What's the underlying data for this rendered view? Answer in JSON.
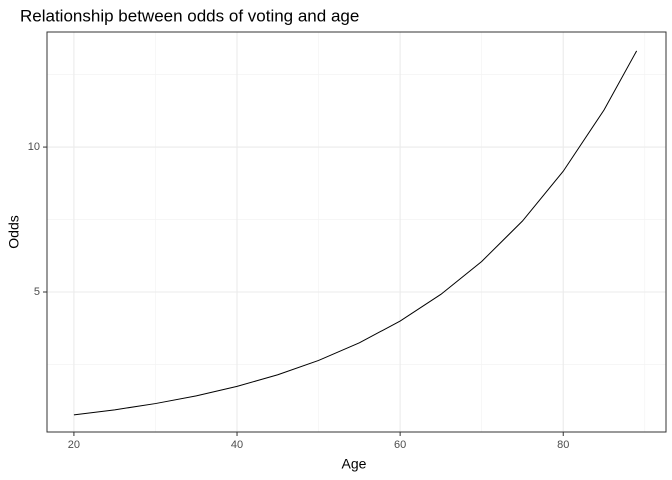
{
  "chart_data": {
    "type": "line",
    "title": "Relationship between odds of voting and age",
    "xlabel": "Age",
    "ylabel": "Odds",
    "x": [
      20,
      25,
      30,
      35,
      40,
      45,
      50,
      55,
      60,
      65,
      70,
      75,
      80,
      85,
      89
    ],
    "series": [
      {
        "color": "#000000",
        "values": [
          0.76,
          0.935,
          1.151,
          1.416,
          1.743,
          2.145,
          2.639,
          3.248,
          3.997,
          4.919,
          6.053,
          7.449,
          9.166,
          11.28,
          13.32
        ]
      }
    ],
    "xlim": [
      16.7,
      92.6
    ],
    "ylim": [
      0.17,
      13.97
    ],
    "xticks": [
      20,
      40,
      60,
      80
    ],
    "yticks": [
      5,
      10
    ],
    "x_minor_breaks": [
      30,
      50,
      70,
      90
    ],
    "y_minor_breaks": [
      2.5,
      7.5,
      12.5
    ],
    "grid": true
  }
}
